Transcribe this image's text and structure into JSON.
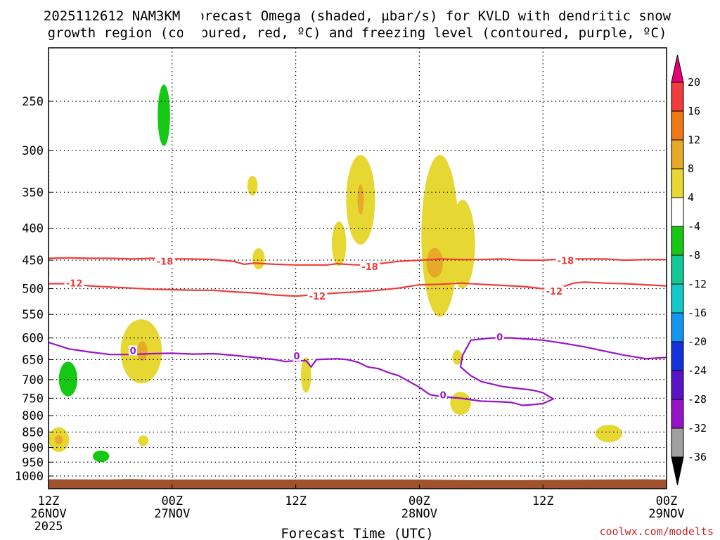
{
  "chart_data": {
    "type": "time-height contour",
    "title_line1": "2025112612 NAM3KM Forecast Omega (shaded, µbar/s) for KVLD with dendritic snow",
    "title_line2": "growth region (contoured, red, ºC) and freezing level (contoured, purple, ºC)",
    "xlabel": "Forecast Time (UTC)",
    "credit": "coolwx.com/modelts",
    "x_range_hours": [
      0,
      60
    ],
    "y_range_hpa": [
      200,
      1025
    ],
    "y_ticks": [
      250,
      300,
      350,
      400,
      450,
      500,
      550,
      600,
      650,
      700,
      750,
      800,
      850,
      900,
      950,
      1000
    ],
    "x_ticks": [
      {
        "hour": 0,
        "line1": "12Z",
        "line2": "26NOV",
        "line3": "2025"
      },
      {
        "hour": 12,
        "line1": "00Z",
        "line2": "27NOV",
        "line3": ""
      },
      {
        "hour": 24,
        "line1": "12Z",
        "line2": "",
        "line3": ""
      },
      {
        "hour": 36,
        "line1": "00Z",
        "line2": "28NOV",
        "line3": ""
      },
      {
        "hour": 48,
        "line1": "12Z",
        "line2": "",
        "line3": ""
      },
      {
        "hour": 60,
        "line1": "00Z",
        "line2": "29NOV",
        "line3": ""
      }
    ],
    "colorbar": {
      "labels": [
        "20",
        "16",
        "12",
        "8",
        "4",
        "-4",
        "-8",
        "-12",
        "-16",
        "-20",
        "-24",
        "-28",
        "-32",
        "-36"
      ],
      "colors": [
        "#e60073",
        "#f03c3c",
        "#f07814",
        "#e6aa28",
        "#e6d732",
        "#ffffff",
        "#14c814",
        "#14c896",
        "#14c8c8",
        "#1496f0",
        "#1432dc",
        "#5a14c8",
        "#9614c8",
        "#a0a0a0"
      ],
      "top_arrow_color": "#e60073",
      "bottom_arrow_color": "#000000"
    },
    "terrain_color": "#a0522d",
    "terrain_top_hpa": [
      [
        0,
        1012
      ],
      [
        6,
        1013
      ],
      [
        8,
        1011
      ],
      [
        9,
        1012
      ],
      [
        10,
        1013
      ],
      [
        20,
        1013
      ],
      [
        36,
        1013
      ],
      [
        41,
        1015
      ],
      [
        46,
        1015
      ],
      [
        58,
        1012
      ],
      [
        59,
        1013
      ],
      [
        60,
        1013
      ]
    ],
    "contours": [
      {
        "name": "dgz-minus-18",
        "level": "-18",
        "color": "#f03c3c",
        "points": [
          [
            0,
            447
          ],
          [
            2,
            446
          ],
          [
            4,
            447
          ],
          [
            6,
            447
          ],
          [
            8,
            448
          ],
          [
            10,
            447
          ],
          [
            12,
            448
          ],
          [
            14,
            448
          ],
          [
            16,
            449
          ],
          [
            18,
            452
          ],
          [
            19,
            457
          ],
          [
            20,
            455
          ],
          [
            22,
            457
          ],
          [
            24,
            458
          ],
          [
            26,
            458
          ],
          [
            27,
            458
          ],
          [
            28,
            456
          ],
          [
            30,
            458
          ],
          [
            32,
            456
          ],
          [
            34,
            452
          ],
          [
            36,
            450
          ],
          [
            38,
            448
          ],
          [
            40,
            449
          ],
          [
            42,
            449
          ],
          [
            44,
            448
          ],
          [
            46,
            450
          ],
          [
            48,
            450
          ],
          [
            50,
            448
          ],
          [
            52,
            448
          ],
          [
            54,
            448
          ],
          [
            56,
            450
          ],
          [
            58,
            449
          ],
          [
            60,
            449
          ]
        ],
        "labels": [
          [
            11.3,
            453
          ],
          [
            31.2,
            462
          ],
          [
            50.2,
            452
          ]
        ]
      },
      {
        "name": "dgz-minus-12",
        "level": "-12",
        "color": "#f03c3c",
        "points": [
          [
            0,
            491
          ],
          [
            2,
            491
          ],
          [
            4,
            495
          ],
          [
            6,
            497
          ],
          [
            8,
            499
          ],
          [
            10,
            501
          ],
          [
            12,
            502
          ],
          [
            14,
            503
          ],
          [
            16,
            503
          ],
          [
            18,
            506
          ],
          [
            20,
            508
          ],
          [
            22,
            512
          ],
          [
            24,
            514
          ],
          [
            26,
            511
          ],
          [
            28,
            508
          ],
          [
            30,
            506
          ],
          [
            32,
            503
          ],
          [
            34,
            499
          ],
          [
            36,
            493
          ],
          [
            38,
            492
          ],
          [
            40,
            490
          ],
          [
            42,
            492
          ],
          [
            44,
            494
          ],
          [
            46,
            496
          ],
          [
            48,
            500
          ],
          [
            49,
            499
          ],
          [
            50,
            496
          ],
          [
            51,
            490
          ],
          [
            52,
            488
          ],
          [
            54,
            490
          ],
          [
            56,
            491
          ],
          [
            58,
            493
          ],
          [
            60,
            495
          ]
        ],
        "labels": [
          [
            2.5,
            491
          ],
          [
            26.1,
            515
          ],
          [
            49.1,
            506
          ]
        ]
      },
      {
        "name": "freezing-level-0",
        "level": "0",
        "color": "#9a14c8",
        "points": [
          [
            0,
            610
          ],
          [
            2,
            625
          ],
          [
            4,
            632
          ],
          [
            6,
            638
          ],
          [
            8,
            638
          ],
          [
            10,
            636
          ],
          [
            12,
            635
          ],
          [
            14,
            637
          ],
          [
            16,
            636
          ],
          [
            18,
            640
          ],
          [
            20,
            645
          ],
          [
            22,
            650
          ],
          [
            23,
            655
          ],
          [
            24,
            652
          ],
          [
            25,
            653
          ],
          [
            25.5,
            668
          ],
          [
            26,
            650
          ],
          [
            28,
            648
          ],
          [
            29,
            650
          ],
          [
            30,
            656
          ],
          [
            31,
            668
          ],
          [
            32,
            672
          ],
          [
            33,
            682
          ],
          [
            34,
            690
          ],
          [
            35,
            705
          ],
          [
            36,
            720
          ],
          [
            37,
            740
          ],
          [
            38,
            745
          ],
          [
            40,
            750
          ],
          [
            42,
            758
          ],
          [
            44,
            760
          ],
          [
            45,
            762
          ],
          [
            46,
            770
          ],
          [
            47,
            768
          ],
          [
            48,
            765
          ],
          [
            49,
            752
          ],
          [
            48,
            735
          ],
          [
            47,
            728
          ],
          [
            44,
            718
          ],
          [
            42,
            705
          ],
          [
            41,
            690
          ],
          [
            40,
            668
          ],
          [
            40.2,
            640
          ],
          [
            41,
            605
          ],
          [
            43,
            600
          ],
          [
            45,
            600
          ],
          [
            48,
            605
          ],
          [
            50,
            612
          ],
          [
            52,
            620
          ],
          [
            54,
            630
          ],
          [
            56,
            640
          ],
          [
            58,
            648
          ],
          [
            60,
            645
          ]
        ],
        "labels": [
          [
            8.2,
            630
          ],
          [
            24.1,
            643
          ],
          [
            38.3,
            742
          ],
          [
            43.8,
            599
          ]
        ]
      }
    ],
    "shaded_regions": [
      {
        "name": "green-0",
        "level": "-4",
        "t": 11.2,
        "dt": 0.9,
        "p": 309,
        "dp": 167
      },
      {
        "name": "teal-0",
        "level": "-8",
        "t": 11.2,
        "dt": 0.6,
        "p": 265,
        "dp": 60
      },
      {
        "name": "green-1",
        "level": "-4",
        "t": 14.0,
        "dt": 1.0,
        "p": 225,
        "dp": 140
      },
      {
        "name": "green-2",
        "level": "-4",
        "t": 17.1,
        "dt": 1.2,
        "p": 262,
        "dp": 117
      },
      {
        "name": "green-3",
        "level": "-4",
        "t": 20.0,
        "dt": 0.8,
        "p": 293,
        "dp": 103
      },
      {
        "name": "green-4",
        "level": "-4",
        "t": 22.3,
        "dt": 1.1,
        "p": 235,
        "dp": 59
      },
      {
        "name": "green-5",
        "level": "-4",
        "t": 7.4,
        "dt": 1.2,
        "p": 478,
        "dp": 90
      },
      {
        "name": "green-6",
        "level": "-4",
        "t": 1.9,
        "dt": 1.6,
        "p": 710,
        "dp": 160
      },
      {
        "name": "teal-1",
        "level": "-8",
        "t": 1.9,
        "dt": 0.9,
        "p": 700,
        "dp": 90
      },
      {
        "name": "green-7",
        "level": "-4",
        "t": 2.1,
        "dt": 0.4,
        "p": 580,
        "dp": 30
      },
      {
        "name": "green-8",
        "level": "-4",
        "t": 5.1,
        "dt": 1.6,
        "p": 928,
        "dp": 90
      },
      {
        "name": "teal-2",
        "level": "-8",
        "t": 5.1,
        "dt": 0.8,
        "p": 930,
        "dp": 40
      },
      {
        "name": "green-9",
        "level": "-4",
        "t": 13.8,
        "dt": 0.4,
        "p": 778,
        "dp": 40
      },
      {
        "name": "yellow-0",
        "level": "4",
        "t": 9.0,
        "dt": 2.0,
        "p": 635,
        "dp": 150
      },
      {
        "name": "orange-0",
        "level": "8",
        "t": 9.1,
        "dt": 0.5,
        "p": 630,
        "dp": 45
      },
      {
        "name": "yellow-1",
        "level": "4",
        "t": 9.2,
        "dt": 0.5,
        "p": 878,
        "dp": 35
      },
      {
        "name": "yellow-2",
        "level": "4",
        "t": 1.0,
        "dt": 1.0,
        "p": 875,
        "dp": 80
      },
      {
        "name": "orange-1",
        "level": "8",
        "t": 1.0,
        "dt": 0.4,
        "p": 875,
        "dp": 30
      },
      {
        "name": "yellow-3",
        "level": "4",
        "t": 19.8,
        "dt": 0.5,
        "p": 342,
        "dp": 25
      },
      {
        "name": "yellow-4",
        "level": "4",
        "t": 20.4,
        "dt": 0.6,
        "p": 448,
        "dp": 35
      },
      {
        "name": "yellow-5",
        "level": "4",
        "t": 25.0,
        "dt": 0.5,
        "p": 690,
        "dp": 90
      },
      {
        "name": "yellow-6",
        "level": "4",
        "t": 28.2,
        "dt": 0.7,
        "p": 425,
        "dp": 70
      },
      {
        "name": "yellow-7",
        "level": "4",
        "t": 30.3,
        "dt": 1.4,
        "p": 365,
        "dp": 120
      },
      {
        "name": "orange-2",
        "level": "8",
        "t": 30.3,
        "dt": 0.3,
        "p": 360,
        "dp": 40
      },
      {
        "name": "yellow-8",
        "level": "4",
        "t": 38.0,
        "dt": 1.8,
        "p": 430,
        "dp": 250
      },
      {
        "name": "yellow-9",
        "level": "4",
        "t": 40.2,
        "dt": 1.2,
        "p": 430,
        "dp": 140
      },
      {
        "name": "yellow-10",
        "level": "4",
        "t": 37.5,
        "dt": 1.0,
        "p": 445,
        "dp": 80
      },
      {
        "name": "orange-3",
        "level": "8",
        "t": 37.5,
        "dt": 0.8,
        "p": 455,
        "dp": 50
      },
      {
        "name": "yellow-11",
        "level": "4",
        "t": 39.7,
        "dt": 0.5,
        "p": 645,
        "dp": 35
      },
      {
        "name": "yellow-12",
        "level": "4",
        "t": 40.0,
        "dt": 1.0,
        "p": 765,
        "dp": 65
      },
      {
        "name": "yellow-13",
        "level": "4",
        "t": 54.4,
        "dt": 1.3,
        "p": 855,
        "dp": 55
      }
    ]
  }
}
